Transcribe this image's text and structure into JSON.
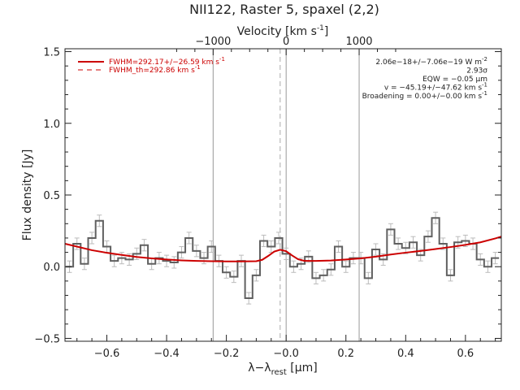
{
  "chart_data": {
    "type": "line",
    "title": "NII122, Raster 5, spaxel (2,2)",
    "xlabel": "λ−λ",
    "xlabel_sub": "rest",
    "xlabel_unit": " [μm]",
    "ylabel": "Flux density [Jy]",
    "top_axis_label": "Velocity [km s",
    "top_axis_sup": "-1",
    "top_axis_close": "]",
    "xlim": [
      -0.74,
      0.72
    ],
    "ylim": [
      -0.52,
      1.52
    ],
    "top_axis_ticks": [
      {
        "x": -0.2443,
        "label": "−1000"
      },
      {
        "x": 0.0,
        "label": "0"
      },
      {
        "x": 0.2443,
        "label": "1000"
      }
    ],
    "x_ticks": [
      {
        "x": -0.6,
        "label": "−0.6"
      },
      {
        "x": -0.4,
        "label": "−0.4"
      },
      {
        "x": -0.2,
        "label": "−0.2"
      },
      {
        "x": 0.0,
        "label": "−0.0"
      },
      {
        "x": 0.2,
        "label": "0.2"
      },
      {
        "x": 0.4,
        "label": "0.4"
      },
      {
        "x": 0.6,
        "label": "0.6"
      }
    ],
    "y_ticks": [
      {
        "y": -0.5,
        "label": "−0.5"
      },
      {
        "y": 0.0,
        "label": "0.0"
      },
      {
        "y": 0.5,
        "label": "0.5"
      },
      {
        "y": 1.0,
        "label": "1.0"
      },
      {
        "y": 1.5,
        "label": "1.5"
      }
    ],
    "vertical_lines": [
      {
        "x": -0.2443,
        "style": "solid"
      },
      {
        "x": 0.0,
        "style": "solid"
      },
      {
        "x": 0.2443,
        "style": "solid"
      },
      {
        "x": -0.02,
        "style": "dashed"
      }
    ],
    "series": [
      {
        "style": "histogram",
        "color": "#606060",
        "x": [
          -0.725,
          -0.7,
          -0.675,
          -0.65,
          -0.625,
          -0.6,
          -0.575,
          -0.55,
          -0.525,
          -0.5,
          -0.475,
          -0.45,
          -0.425,
          -0.4,
          -0.375,
          -0.35,
          -0.325,
          -0.3,
          -0.275,
          -0.25,
          -0.225,
          -0.2,
          -0.175,
          -0.15,
          -0.125,
          -0.1,
          -0.075,
          -0.05,
          -0.025,
          0.0,
          0.025,
          0.05,
          0.075,
          0.1,
          0.125,
          0.15,
          0.175,
          0.2,
          0.225,
          0.25,
          0.275,
          0.3,
          0.325,
          0.35,
          0.375,
          0.4,
          0.425,
          0.45,
          0.475,
          0.5,
          0.525,
          0.55,
          0.575,
          0.6,
          0.625,
          0.65,
          0.675,
          0.7
        ],
        "y": [
          0.0,
          0.16,
          0.02,
          0.2,
          0.32,
          0.14,
          0.04,
          0.06,
          0.05,
          0.09,
          0.15,
          0.02,
          0.06,
          0.04,
          0.03,
          0.1,
          0.2,
          0.11,
          0.06,
          0.14,
          0.04,
          -0.04,
          -0.07,
          0.04,
          -0.22,
          -0.06,
          0.18,
          0.14,
          0.2,
          0.09,
          0.0,
          0.02,
          0.07,
          -0.08,
          -0.06,
          -0.02,
          0.14,
          0.0,
          0.06,
          0.06,
          -0.08,
          0.12,
          0.05,
          0.26,
          0.16,
          0.13,
          0.17,
          0.08,
          0.21,
          0.34,
          0.16,
          -0.06,
          0.17,
          0.18,
          0.16,
          0.05,
          0.0,
          0.06
        ],
        "error": 0.04
      },
      {
        "style": "line",
        "color": "#cc0000",
        "width": 2,
        "x": [
          -0.74,
          -0.7,
          -0.65,
          -0.6,
          -0.55,
          -0.5,
          -0.45,
          -0.4,
          -0.35,
          -0.3,
          -0.25,
          -0.2,
          -0.15,
          -0.1,
          -0.08,
          -0.06,
          -0.04,
          -0.02,
          0.0,
          0.02,
          0.04,
          0.06,
          0.08,
          0.1,
          0.15,
          0.2,
          0.25,
          0.3,
          0.35,
          0.4,
          0.45,
          0.5,
          0.55,
          0.6,
          0.65,
          0.7,
          0.72
        ],
        "y": [
          0.16,
          0.14,
          0.115,
          0.097,
          0.082,
          0.068,
          0.058,
          0.05,
          0.044,
          0.04,
          0.038,
          0.037,
          0.037,
          0.038,
          0.048,
          0.075,
          0.105,
          0.118,
          0.108,
          0.078,
          0.052,
          0.041,
          0.04,
          0.04,
          0.043,
          0.05,
          0.058,
          0.07,
          0.085,
          0.098,
          0.11,
          0.123,
          0.137,
          0.152,
          0.17,
          0.197,
          0.21
        ]
      },
      {
        "style": "line",
        "color": "#cc0000",
        "width": 1,
        "x": [
          -0.1,
          -0.08,
          -0.06,
          -0.04,
          -0.02,
          0.0,
          0.02,
          0.04,
          0.06,
          0.08,
          0.1
        ],
        "y": [
          0.04,
          0.05,
          0.077,
          0.107,
          0.12,
          0.11,
          0.08,
          0.054,
          0.043,
          0.041,
          0.041
        ]
      }
    ],
    "legend": {
      "position": "top-left",
      "entries": [
        {
          "label": "FWHM=292.17+/−26.59 km s",
          "sup": "-1",
          "style": "solid",
          "color": "#cc0000"
        },
        {
          "label": "FWHM_th=292.86 km s",
          "sup": "-1",
          "style": "dashed",
          "color": "#cc0000"
        }
      ]
    },
    "annotations": [
      {
        "text": "2.06e−18+/−7.06e−19 W m",
        "sup": "-2"
      },
      {
        "text": "2.93σ",
        "sup": ""
      },
      {
        "text": "EQW = −0.05 μm",
        "sup": ""
      },
      {
        "text": "v = −45.19+/−47.62 km s",
        "sup": "-1"
      },
      {
        "text": "Broadening = 0.00+/−0.00 km s",
        "sup": "-1"
      }
    ]
  }
}
